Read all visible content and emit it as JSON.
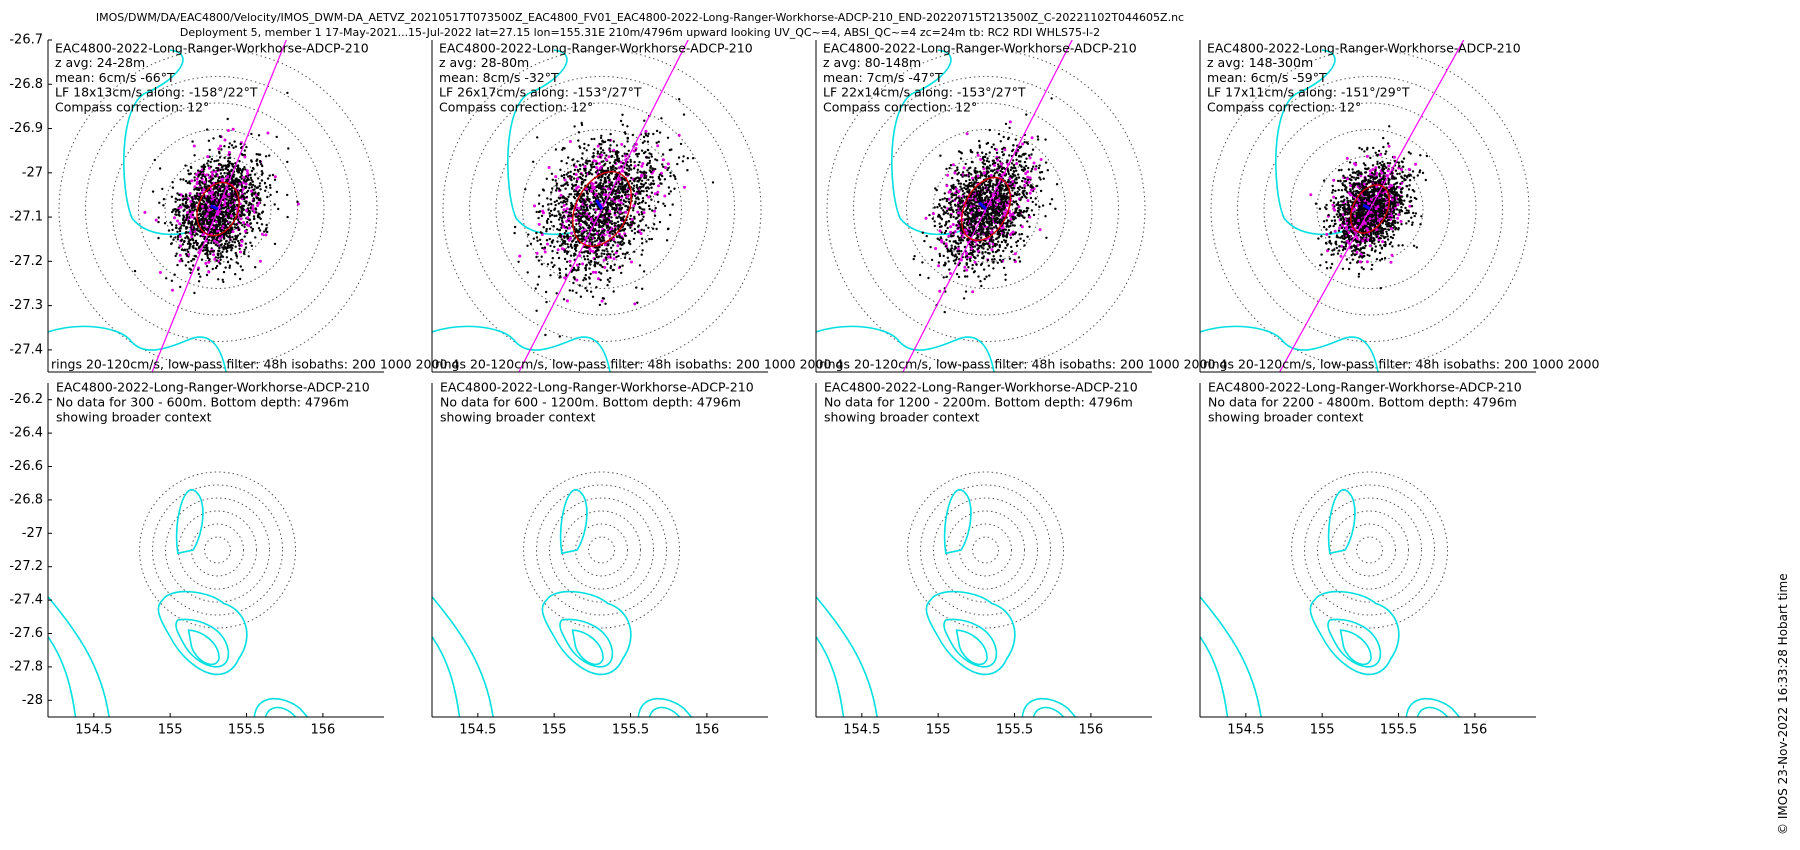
{
  "figure": {
    "title_line1": "IMOS/DWM/DA/EAC4800/Velocity/IMOS_DWM-DA_AETVZ_20210517T073500Z_EAC4800_FV01_EAC4800-2022-Long-Ranger-Workhorse-ADCP-210_END-20220715T213500Z_C-20221102T044605Z.nc",
    "title_line2": "Deployment 5, member 1 17-May-2021...15-Jul-2022 lat=27.15 lon=155.31E 210m/4796m upward looking UV_QC~=4, ABSI_QC~=4 zc=24m tb: RC2 RDI WHLS75-I-2",
    "credit": "© IMOS 23-Nov-2022 16:33:28 Hobart time"
  },
  "colors": {
    "scatter_raw": "#000000",
    "scatter_highlight": "#e000e0",
    "mean_vector": "#0000ff",
    "ellipse": "#d40000",
    "axis_line": "#ff00ff",
    "isobath": "#00e0e0",
    "rings": "#555555"
  },
  "chart_data": [
    {
      "type": "scatter",
      "panel": "top-1",
      "lines": [
        "EAC4800-2022-Long-Ranger-Workhorse-ADCP-210",
        "z avg: 24-28m",
        "mean: 6cm/s -66°T",
        "LF 18x13cm/s along: -158°/22°T",
        "Compass correction: 12°"
      ],
      "footer": "rings 20-120cm/s, low-pass filter: 48h isobaths: 200 1000 2000 4",
      "ylim": [
        -27.45,
        -26.7
      ],
      "yticks": [
        "-26.7",
        "-26.8",
        "-26.9",
        "-27",
        "-27.1",
        "-27.2",
        "-27.3",
        "-27.4"
      ],
      "center": [
        155.31,
        -27.1
      ],
      "mean": {
        "speed_cms": 6,
        "dir_degT": -66
      },
      "ellipse": {
        "major_cms": 18,
        "minor_cms": 13,
        "along_degT": 22
      },
      "spread_cms": 22,
      "ring_speeds_cms": [
        20,
        40,
        60,
        80,
        100,
        120
      ]
    },
    {
      "type": "scatter",
      "panel": "top-2",
      "lines": [
        "EAC4800-2022-Long-Ranger-Workhorse-ADCP-210",
        "z avg: 28-80m",
        "mean: 8cm/s -32°T",
        "LF 26x17cm/s along: -153°/27°T",
        "Compass correction: 12°"
      ],
      "footer": "rings 20-120cm/s, low-pass filter: 48h isobaths: 200 1000 2000 4",
      "center": [
        155.31,
        -27.1
      ],
      "mean": {
        "speed_cms": 8,
        "dir_degT": -32
      },
      "ellipse": {
        "major_cms": 26,
        "minor_cms": 17,
        "along_degT": 27
      },
      "spread_cms": 28,
      "ring_speeds_cms": [
        20,
        40,
        60,
        80,
        100,
        120
      ]
    },
    {
      "type": "scatter",
      "panel": "top-3",
      "lines": [
        "EAC4800-2022-Long-Ranger-Workhorse-ADCP-210",
        "z avg: 80-148m",
        "mean: 7cm/s -47°T",
        "LF 22x14cm/s along: -153°/27°T",
        "Compass correction: 12°"
      ],
      "footer": "rings 20-120cm/s, low-pass filter: 48h isobaths: 200 1000 2000 4",
      "center": [
        155.31,
        -27.1
      ],
      "mean": {
        "speed_cms": 7,
        "dir_degT": -47
      },
      "ellipse": {
        "major_cms": 22,
        "minor_cms": 14,
        "along_degT": 27
      },
      "spread_cms": 23,
      "ring_speeds_cms": [
        20,
        40,
        60,
        80,
        100,
        120
      ]
    },
    {
      "type": "scatter",
      "panel": "top-4",
      "lines": [
        "EAC4800-2022-Long-Ranger-Workhorse-ADCP-210",
        "z avg: 148-300m",
        "mean: 6cm/s -59°T",
        "LF 17x11cm/s along: -151°/29°T",
        "Compass correction: 12°"
      ],
      "footer": "rings 20-120cm/s, low-pass filter: 48h isobaths: 200 1000 2000",
      "center": [
        155.31,
        -27.1
      ],
      "mean": {
        "speed_cms": 6,
        "dir_degT": -59
      },
      "ellipse": {
        "major_cms": 17,
        "minor_cms": 11,
        "along_degT": 29
      },
      "spread_cms": 18,
      "ring_speeds_cms": [
        20,
        40,
        60,
        80,
        100,
        120
      ]
    },
    {
      "type": "map",
      "panel": "bottom-1",
      "lines": [
        "EAC4800-2022-Long-Ranger-Workhorse-ADCP-210",
        "No data for 300 - 600m. Bottom depth: 4796m",
        "showing broader context"
      ],
      "xlim": [
        154.2,
        156.4
      ],
      "ylim": [
        -28.1,
        -26.1
      ],
      "xticks": [
        "154.5",
        "155",
        "155.5",
        "156"
      ],
      "yticks": [
        "-26.2",
        "-26.4",
        "-26.6",
        "-26.8",
        "-27",
        "-27.2",
        "-27.4",
        "-27.6",
        "-27.8",
        "-28"
      ],
      "mooring": [
        155.31,
        -27.1
      ]
    },
    {
      "type": "map",
      "panel": "bottom-2",
      "lines": [
        "EAC4800-2022-Long-Ranger-Workhorse-ADCP-210",
        "No data for 600 - 1200m. Bottom depth: 4796m",
        "showing broader context"
      ],
      "xticks": [
        "154.5",
        "155",
        "155.5",
        "156"
      ],
      "mooring": [
        155.31,
        -27.1
      ]
    },
    {
      "type": "map",
      "panel": "bottom-3",
      "lines": [
        "EAC4800-2022-Long-Ranger-Workhorse-ADCP-210",
        "No data for 1200 - 2200m. Bottom depth: 4796m",
        "showing broader context"
      ],
      "xticks": [
        "154.5",
        "155",
        "155.5",
        "156"
      ],
      "mooring": [
        155.31,
        -27.1
      ]
    },
    {
      "type": "map",
      "panel": "bottom-4",
      "lines": [
        "EAC4800-2022-Long-Ranger-Workhorse-ADCP-210",
        "No data for 2200 - 4800m. Bottom depth: 4796m",
        "showing broader context"
      ],
      "xticks": [
        "154.5",
        "155",
        "155.5",
        "156"
      ],
      "mooring": [
        155.31,
        -27.1
      ]
    }
  ]
}
